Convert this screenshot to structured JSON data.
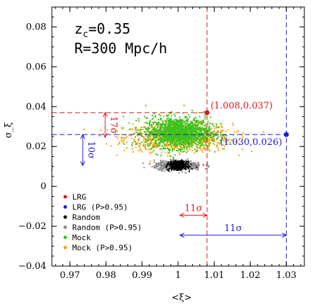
{
  "chart_data": {
    "type": "scatter",
    "xlabel": "<ξ>",
    "ylabel": "σ_ξ",
    "xlim": [
      0.965,
      1.035
    ],
    "ylim": [
      -0.04,
      0.09
    ],
    "xticks": [
      "0.97",
      "0.98",
      "0.99",
      "1",
      "1.01",
      "1.02",
      "1.03"
    ],
    "yticks": [
      "−0.04",
      "−0.02",
      "0",
      "0.02",
      "0.04",
      "0.06",
      "0.08"
    ],
    "panel_text": {
      "line1_main": "z",
      "line1_sub": "c",
      "line1_rest": "=0.35",
      "line2": "R=300 Mpc/h"
    },
    "colors": {
      "lrg": "#e8121a",
      "lrg_p": "#1a1ad6",
      "random": "#000000",
      "random_p": "#8c8c8c",
      "mock": "#3cc21c",
      "mock_p": "#f5a30f"
    },
    "legend": [
      {
        "label": "LRG",
        "color": "#e8121a"
      },
      {
        "label": "LRG (P>0.95)",
        "color": "#1a1ad6"
      },
      {
        "label": "Random",
        "color": "#000000"
      },
      {
        "label": "Random (P>0.95)",
        "color": "#8c8c8c"
      },
      {
        "label": "Mock",
        "color": "#3cc21c"
      },
      {
        "label": "Mock (P>0.95)",
        "color": "#f5a30f"
      }
    ],
    "points": [
      {
        "name": "LRG",
        "x": 1.008,
        "y": 0.037,
        "label": "(1.008,0.037)",
        "color": "#e8121a"
      },
      {
        "name": "LRG (P>0.95)",
        "x": 1.03,
        "y": 0.026,
        "label": "(1.030,0.026)",
        "color": "#1a1ad6"
      }
    ],
    "clouds": [
      {
        "name": "Mock (P>0.95)",
        "mx": 1.0,
        "sx": 0.0075,
        "my": 0.0245,
        "sy": 0.0035,
        "n": 900,
        "color": "#f5a30f"
      },
      {
        "name": "Mock",
        "mx": 1.0,
        "sx": 0.0045,
        "my": 0.027,
        "sy": 0.0038,
        "n": 1500,
        "color": "#3cc21c"
      },
      {
        "name": "Random (P>0.95)",
        "mx": 1.0,
        "sx": 0.0033,
        "my": 0.0105,
        "sy": 0.0012,
        "n": 500,
        "color": "#8c8c8c"
      },
      {
        "name": "Random",
        "mx": 1.0,
        "sx": 0.0012,
        "my": 0.0105,
        "sy": 0.001,
        "n": 450,
        "color": "#000000"
      }
    ],
    "annotations": {
      "sigma_y_red": "17σ",
      "sigma_y_blue": "10σ",
      "sigma_x_red": "11σ",
      "sigma_x_blue": "11σ"
    }
  }
}
